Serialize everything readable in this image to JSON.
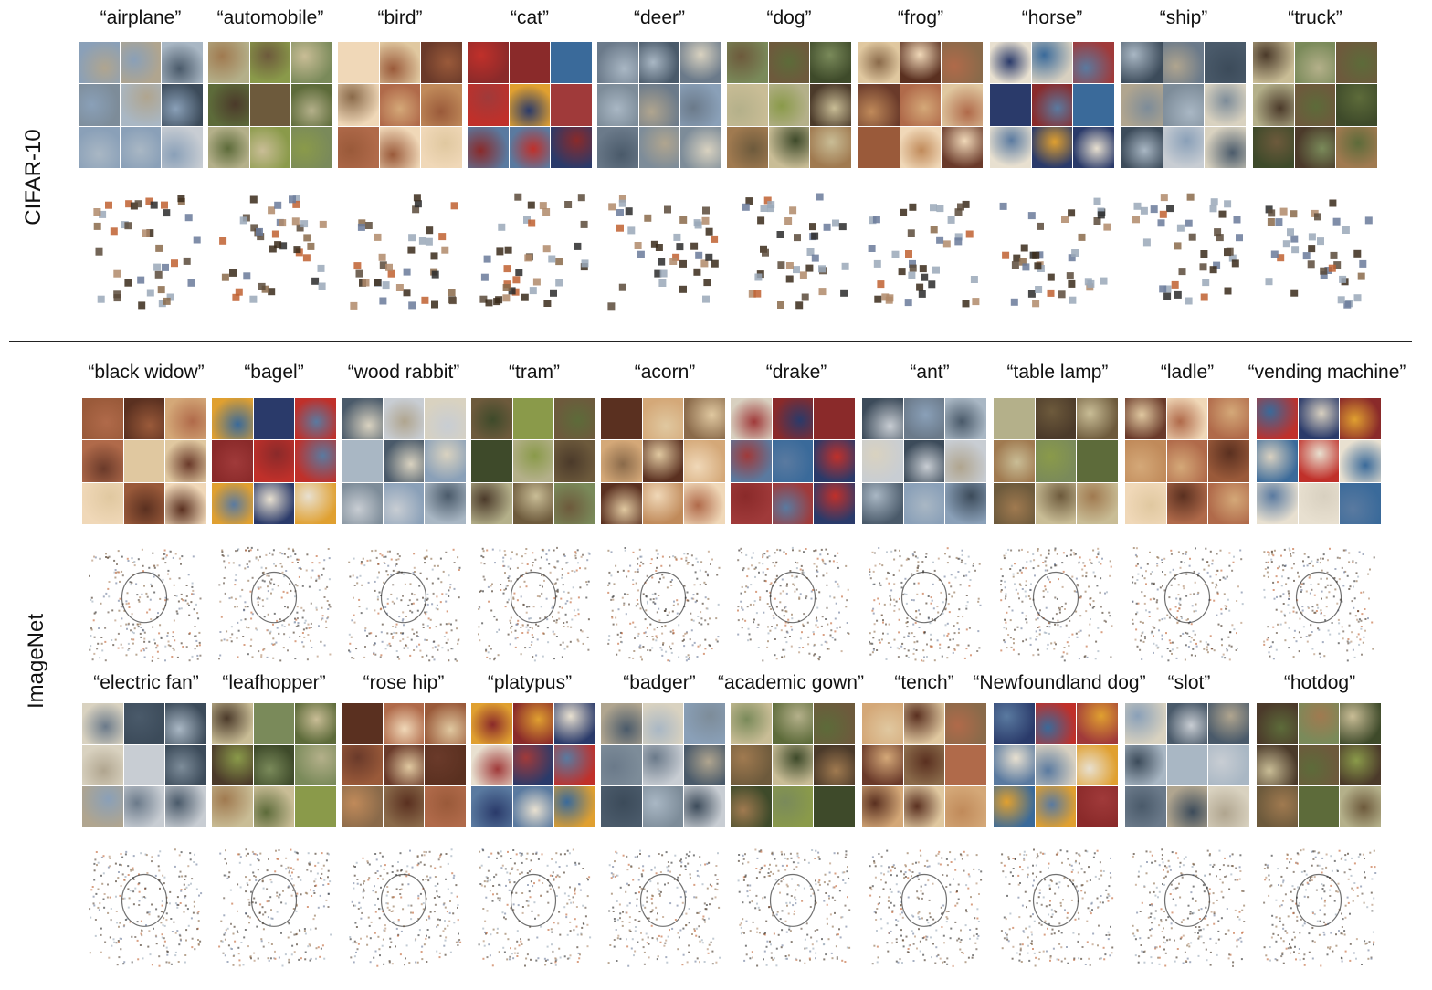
{
  "sections": {
    "cifar": "CIFAR-10",
    "imagenet": "ImageNet"
  },
  "cifar_classes": [
    "“airplane”",
    "“automobile”",
    "“bird”",
    "“cat”",
    "“deer”",
    "“dog”",
    "“frog”",
    "“horse”",
    "“ship”",
    "“truck”"
  ],
  "imagenet_row1": [
    "“black widow”",
    "“bagel”",
    "“wood rabbit”",
    "“tram”",
    "“acorn”",
    "“drake”",
    "“ant”",
    "“table lamp”",
    "“ladle”",
    "“vending machine”"
  ],
  "imagenet_row2": [
    "“electric fan”",
    "“leafhopper”",
    "“rose hip”",
    "“platypus”",
    "“badger”",
    "“academic gown”",
    "“tench”",
    "“Newfoundland dog”",
    "“slot”",
    "“hotdog”"
  ]
}
